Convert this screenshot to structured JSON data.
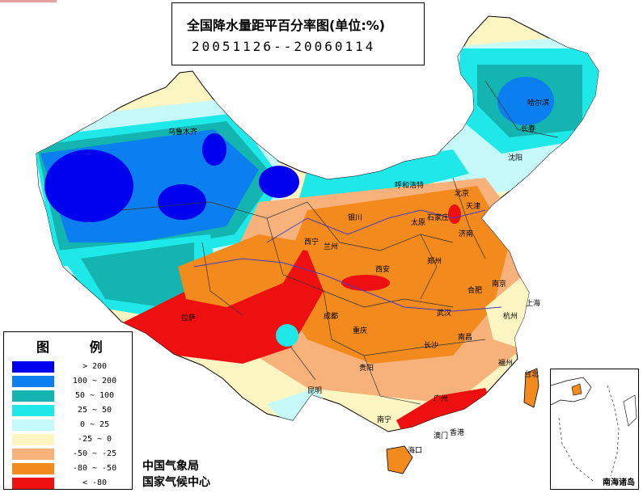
{
  "title": {
    "main": "全国降水量距平百分率图(单位:%)",
    "period": "20051126--20060114"
  },
  "legend": {
    "title": "图 例",
    "entries": [
      {
        "label": "> 200",
        "color": "#0000ee"
      },
      {
        "label": "100 ~ 200",
        "color": "#0b7fef"
      },
      {
        "label": "50 ~ 100",
        "color": "#14b4b0"
      },
      {
        "label": "25 ~ 50",
        "color": "#1ee8e8"
      },
      {
        "label": "0 ~ 25",
        "color": "#c6fafa"
      },
      {
        "label": "-25 ~ 0",
        "color": "#fdf6c2"
      },
      {
        "label": "-50 ~ -25",
        "color": "#f7b27b"
      },
      {
        "label": "-80 ~ -50",
        "color": "#f28a1d"
      },
      {
        "label": "< -80",
        "color": "#ee1010"
      }
    ]
  },
  "organization": {
    "line1": "中国气象局",
    "line2": "国家气候中心"
  },
  "inset": {
    "label": "南海诸岛"
  },
  "cities": [
    "乌鲁木齐",
    "哈尔滨",
    "长春",
    "沈阳",
    "呼和浩特",
    "北京",
    "天津",
    "石家庄",
    "太原",
    "济南",
    "银川",
    "兰州",
    "西宁",
    "郑州",
    "西安",
    "拉萨",
    "成都",
    "重庆",
    "武汉",
    "合肥",
    "南京",
    "上海",
    "杭州",
    "长沙",
    "南昌",
    "福州",
    "台北",
    "贵阳",
    "昆明",
    "南宁",
    "广州",
    "香港",
    "澳门",
    "海口"
  ]
}
